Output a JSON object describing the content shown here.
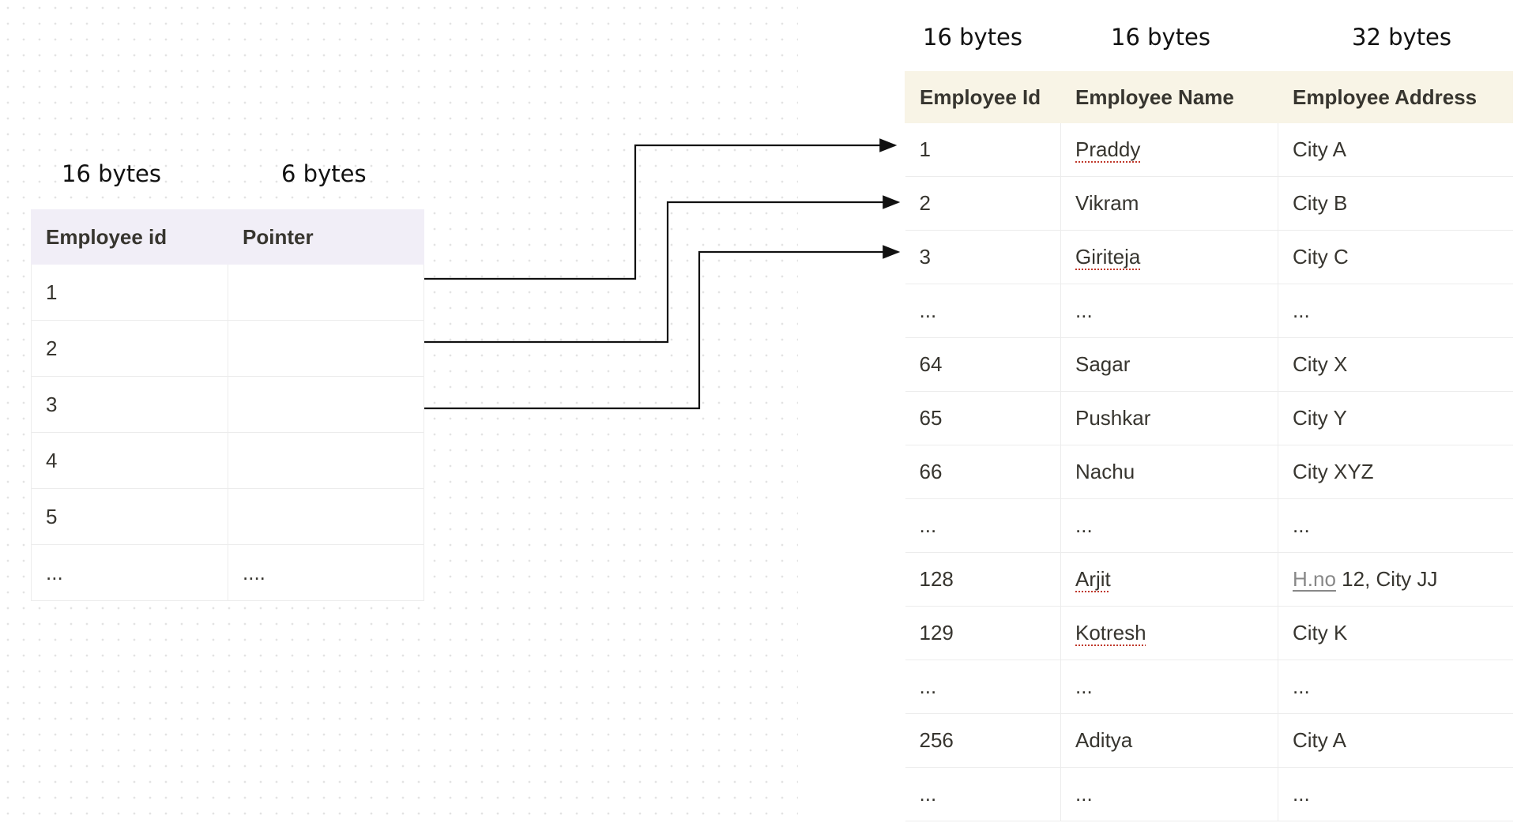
{
  "index_table": {
    "sizes": [
      "16 bytes",
      "6 bytes"
    ],
    "headers": [
      "Employee id",
      "Pointer"
    ],
    "rows": [
      [
        "1",
        ""
      ],
      [
        "2",
        ""
      ],
      [
        "3",
        ""
      ],
      [
        "4",
        ""
      ],
      [
        "5",
        ""
      ],
      [
        "...",
        "...."
      ]
    ]
  },
  "employee_table": {
    "sizes": [
      "16 bytes",
      "16 bytes",
      "32 bytes"
    ],
    "headers": [
      "Employee Id",
      "Employee Name",
      "Employee Address"
    ],
    "rows": [
      [
        "1",
        "Praddy",
        "City A"
      ],
      [
        "2",
        "Vikram",
        "City B"
      ],
      [
        "3",
        "Giriteja",
        "City C"
      ],
      [
        "...",
        "...",
        "..."
      ],
      [
        "64",
        "Sagar",
        "City X"
      ],
      [
        "65",
        "Pushkar",
        "City Y"
      ],
      [
        "66",
        "Nachu",
        "City XYZ"
      ],
      [
        "...",
        "...",
        "..."
      ],
      [
        "128",
        "Arjit",
        "H.no 12, City JJ"
      ],
      [
        "129",
        "Kotresh",
        "City K"
      ],
      [
        "...",
        "...",
        "..."
      ],
      [
        "256",
        "Aditya",
        "City A"
      ],
      [
        "...",
        "...",
        "..."
      ]
    ],
    "spellcheck_flagged": [
      "Praddy",
      "Giriteja",
      "Arjit",
      "Kotresh",
      "H.no"
    ]
  },
  "colors": {
    "index_header_bg": "#f1eef7",
    "employee_header_bg": "#f8f4e6",
    "arrow": "#111111"
  }
}
